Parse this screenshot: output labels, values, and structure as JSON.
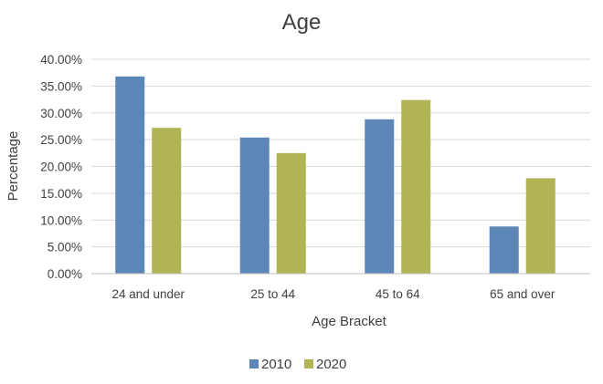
{
  "chart_data": {
    "type": "bar",
    "title": "Age",
    "xlabel": "Age Bracket",
    "ylabel": "Percentage",
    "categories": [
      "24 and under",
      "25 to 44",
      "45 to 64",
      "65 and over"
    ],
    "series": [
      {
        "name": "2010",
        "values": [
          36.8,
          25.4,
          28.8,
          8.8
        ],
        "color": "#5b86b5"
      },
      {
        "name": "2020",
        "values": [
          27.2,
          22.5,
          32.4,
          17.8
        ],
        "color": "#b0b454"
      }
    ],
    "ylim": [
      0,
      40
    ],
    "yticks": [
      0,
      5,
      10,
      15,
      20,
      25,
      30,
      35,
      40
    ],
    "ytick_labels": [
      "0.00%",
      "5.00%",
      "10.00%",
      "15.00%",
      "20.00%",
      "25.00%",
      "30.00%",
      "35.00%",
      "40.00%"
    ],
    "grid": true,
    "legend_position": "bottom"
  }
}
